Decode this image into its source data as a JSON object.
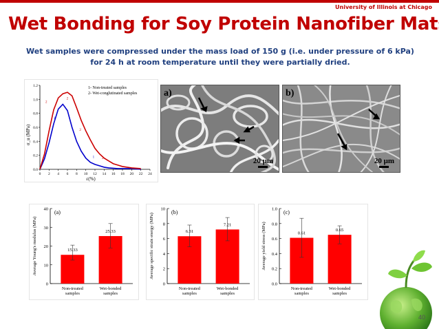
{
  "header": {
    "university": "University of Illinois at Chicago",
    "title": "Wet Bonding for Soy Protein Nanofiber Mats",
    "subtitle_line1": "Wet samples were compressed under the mass load of 150 g (i.e. under pressure of 6 kPa)",
    "subtitle_line2": "for 24 h at room temperature until they were partially dried."
  },
  "stress_chart": {
    "legend_line1": "1- Non-treated samples",
    "legend_line2": "2- Wet-conglutinated samples",
    "ylabel": "σ_u (MPa)",
    "xlabel": "ε(%)",
    "marker1": "1",
    "marker2": "2"
  },
  "sem": {
    "a_label": "a)",
    "b_label": "b)",
    "a_scale": "20 μm",
    "b_scale": "20 μm"
  },
  "footer": {
    "page_number": "40"
  },
  "colors": {
    "title_red": "#c00000",
    "subtitle_blue": "#1f3f7f",
    "bar_red": "#ff0000",
    "series1": "#0000cc",
    "series2": "#cc0000"
  },
  "chart_data": [
    {
      "type": "line",
      "x": [
        0,
        1,
        2,
        3,
        4,
        5,
        6,
        7,
        8,
        9,
        10,
        11,
        12,
        13,
        14,
        15,
        16,
        17,
        18,
        19,
        20,
        21,
        22
      ],
      "series": [
        {
          "name": "1- Non-treated samples",
          "values": [
            0,
            0.15,
            0.38,
            0.65,
            0.86,
            0.93,
            0.84,
            0.6,
            0.4,
            0.26,
            0.16,
            0.1,
            0.07,
            0.05,
            0.03,
            0.02,
            0.015,
            0.01,
            0.01,
            0.01,
            0.01,
            0.005,
            0
          ]
        },
        {
          "name": "2- Wet-conglutinated samples",
          "values": [
            0,
            0.22,
            0.55,
            0.85,
            1.02,
            1.08,
            1.1,
            1.05,
            0.88,
            0.7,
            0.55,
            0.42,
            0.3,
            0.22,
            0.16,
            0.12,
            0.08,
            0.06,
            0.04,
            0.03,
            0.02,
            0.015,
            0.01
          ]
        }
      ],
      "xlim": [
        0,
        24
      ],
      "ylim": [
        0,
        1.2
      ],
      "xticks": [
        0,
        2,
        4,
        6,
        8,
        10,
        12,
        14,
        16,
        18,
        20,
        22,
        24
      ],
      "yticks": [
        0.0,
        0.2,
        0.4,
        0.6,
        0.8,
        1.0,
        1.2
      ],
      "ytick_labels": [
        "0.0",
        "0.2",
        "0.4",
        "0.6",
        "0.8",
        "1.0",
        "1.2"
      ],
      "xlabel": "ε(%)",
      "ylabel": "σ_u (MPa)",
      "legend_placement": "top-right"
    },
    {
      "type": "bar",
      "panel_label": "(a)",
      "ylabel": "Average Young's modulus (MPa)",
      "categories": [
        [
          "Non-treated",
          "samples"
        ],
        [
          "Wet-bonded",
          "samples"
        ]
      ],
      "values": [
        15.33,
        25.33
      ],
      "value_labels": [
        "15.33",
        "25.33"
      ],
      "error": [
        [
          12.5,
          20.5
        ],
        [
          19,
          32
        ]
      ],
      "ylim": [
        0,
        40
      ],
      "yticks": [
        0,
        10,
        20,
        30,
        40
      ],
      "ytick_labels": [
        "0",
        "10",
        "20",
        "30",
        "40"
      ]
    },
    {
      "type": "bar",
      "panel_label": "(b)",
      "ylabel": "Average specific strain energy (MPa)",
      "categories": [
        [
          "Non-treated",
          "samples"
        ],
        [
          "Wet-bonded",
          "samples"
        ]
      ],
      "values": [
        6.31,
        7.21
      ],
      "value_labels": [
        "6.31",
        "7.21"
      ],
      "error": [
        [
          4.9,
          7.8
        ],
        [
          5.7,
          8.8
        ]
      ],
      "ylim": [
        0,
        10
      ],
      "yticks": [
        0,
        2,
        4,
        6,
        8,
        10
      ],
      "ytick_labels": [
        "0",
        "2",
        "4",
        "6",
        "8",
        "10"
      ]
    },
    {
      "type": "bar",
      "panel_label": "(c)",
      "ylabel": "Average yield stress (MPa)",
      "categories": [
        [
          "Non-treated",
          "samples"
        ],
        [
          "Wet-bonded",
          "samples"
        ]
      ],
      "values": [
        0.61,
        0.65
      ],
      "value_labels": [
        "0.61",
        "0.65"
      ],
      "error": [
        [
          0.35,
          0.87
        ],
        [
          0.53,
          0.77
        ]
      ],
      "ylim": [
        0,
        1.0
      ],
      "yticks": [
        0.0,
        0.2,
        0.4,
        0.6,
        0.8,
        1.0
      ],
      "ytick_labels": [
        "0.0",
        "0.2",
        "0.4",
        "0.6",
        "0.8",
        "1.0"
      ]
    }
  ]
}
